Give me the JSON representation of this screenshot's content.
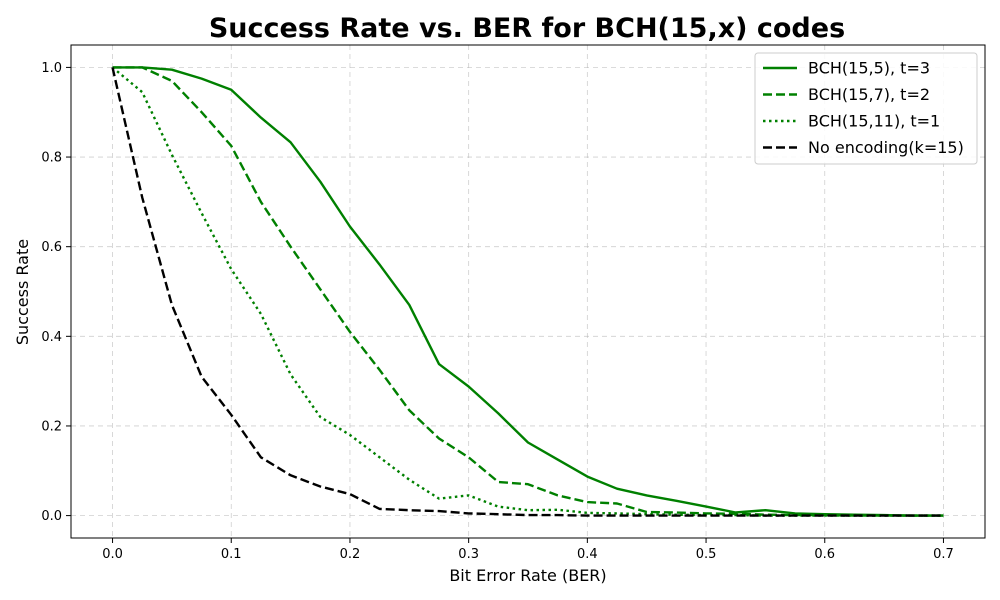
{
  "chart_data": {
    "type": "line",
    "title": "Success Rate vs. BER for BCH(15,x) codes",
    "xlabel": "Bit Error Rate (BER)",
    "ylabel": "Success Rate",
    "xlim": [
      -0.035,
      0.735
    ],
    "ylim": [
      -0.05,
      1.05
    ],
    "xticks": [
      0.0,
      0.1,
      0.2,
      0.3,
      0.4,
      0.5,
      0.6,
      0.7
    ],
    "xtick_labels": [
      "0.0",
      "0.1",
      "0.2",
      "0.3",
      "0.4",
      "0.5",
      "0.6",
      "0.7"
    ],
    "yticks": [
      0.0,
      0.2,
      0.4,
      0.6,
      0.8,
      1.0
    ],
    "ytick_labels": [
      "0.0",
      "0.2",
      "0.4",
      "0.6",
      "0.8",
      "1.0"
    ],
    "grid": true,
    "legend_position": "top-right",
    "x": [
      0.0,
      0.025,
      0.05,
      0.075,
      0.1,
      0.125,
      0.15,
      0.175,
      0.2,
      0.225,
      0.25,
      0.275,
      0.3,
      0.325,
      0.35,
      0.375,
      0.4,
      0.425,
      0.45,
      0.475,
      0.5,
      0.525,
      0.55,
      0.575,
      0.6,
      0.625,
      0.65,
      0.675,
      0.7
    ],
    "series": [
      {
        "name": "BCH(15,5), t=3",
        "color": "#008000",
        "dash": "solid",
        "values": [
          1.0,
          1.0,
          0.995,
          0.975,
          0.95,
          0.888,
          0.833,
          0.745,
          0.645,
          0.56,
          0.47,
          0.338,
          0.288,
          0.228,
          0.163,
          0.125,
          0.087,
          0.06,
          0.045,
          0.033,
          0.02,
          0.007,
          0.012,
          0.005,
          0.003,
          0.002,
          0.001,
          0.0,
          0.0
        ]
      },
      {
        "name": "BCH(15,7), t=2",
        "color": "#008000",
        "dash": "dashed",
        "values": [
          1.0,
          1.0,
          0.97,
          0.9,
          0.825,
          0.7,
          0.6,
          0.505,
          0.41,
          0.325,
          0.235,
          0.172,
          0.13,
          0.075,
          0.07,
          0.045,
          0.03,
          0.027,
          0.008,
          0.007,
          0.005,
          0.004,
          0.002,
          0.001,
          0.001,
          0.0,
          0.0,
          0.0,
          0.0
        ]
      },
      {
        "name": "BCH(15,11), t=1",
        "color": "#008000",
        "dash": "dotted",
        "values": [
          1.0,
          0.945,
          0.805,
          0.675,
          0.55,
          0.45,
          0.315,
          0.22,
          0.18,
          0.13,
          0.08,
          0.038,
          0.045,
          0.02,
          0.012,
          0.013,
          0.006,
          0.005,
          0.003,
          0.002,
          0.001,
          0.001,
          0.0,
          0.0,
          0.0,
          0.0,
          0.0,
          0.0,
          0.0
        ]
      },
      {
        "name": "No encoding(k=15)",
        "color": "#000000",
        "dash": "dashed",
        "values": [
          1.0,
          0.71,
          0.47,
          0.31,
          0.225,
          0.13,
          0.09,
          0.065,
          0.048,
          0.015,
          0.012,
          0.01,
          0.005,
          0.003,
          0.001,
          0.001,
          0.0,
          0.0,
          0.0,
          0.0,
          0.0,
          0.0,
          0.0,
          0.0,
          0.0,
          0.0,
          0.0,
          0.0,
          0.0
        ]
      }
    ]
  }
}
